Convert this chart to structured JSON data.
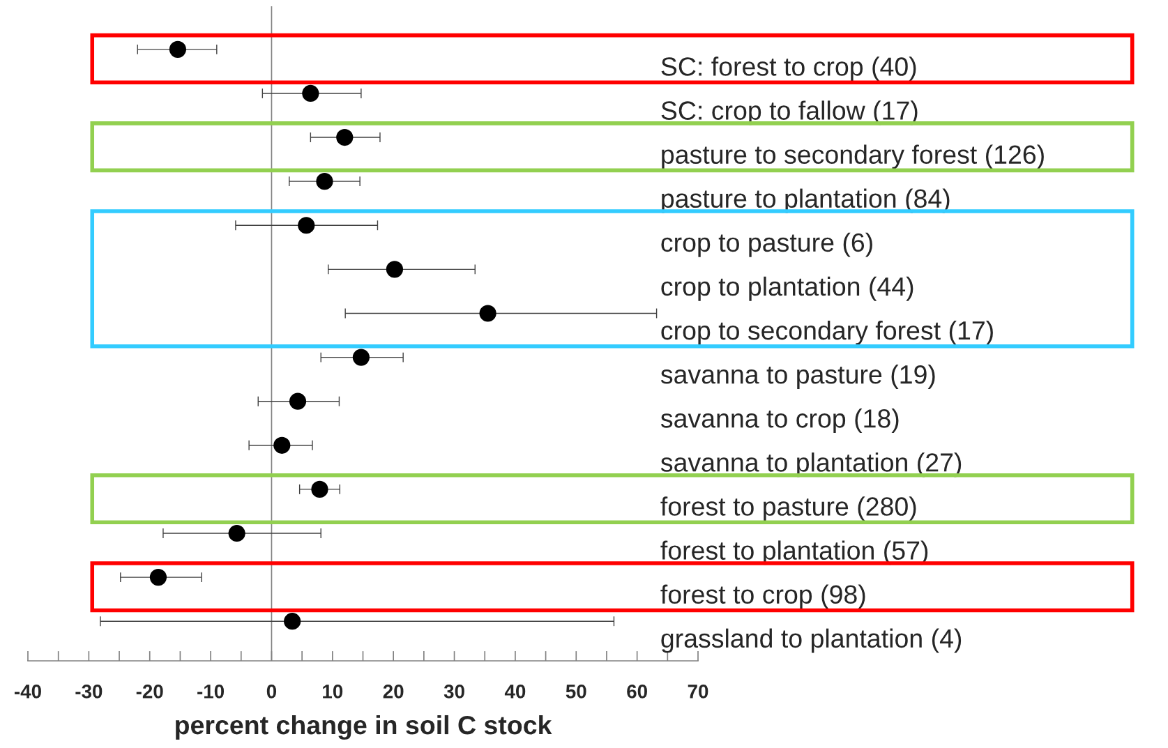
{
  "chart_data": {
    "type": "scatter",
    "orientation": "horizontal",
    "xlabel": "percent change in soil C stock",
    "categories": [
      "SC: forest to crop (40)",
      "SC: crop to fallow (17)",
      "pasture to secondary forest (126)",
      "pasture to plantation (84)",
      "crop to pasture (6)",
      "crop to plantation (44)",
      "crop to secondary forest (17)",
      "savanna to pasture (19)",
      "savanna to crop (18)",
      "savanna to plantation (27)",
      "forest to pasture (280)",
      "forest to plantation (57)",
      "forest to crop (98)",
      "grassland to plantation (4)"
    ],
    "series": [
      {
        "color": "#000000",
        "values": [
          -15.4,
          6.4,
          12.0,
          8.7,
          5.7,
          20.2,
          35.5,
          14.7,
          4.3,
          1.7,
          7.9,
          -5.7,
          -18.6,
          3.4
        ],
        "errors": [
          [
            -22.0,
            -9.0
          ],
          [
            -1.5,
            14.7
          ],
          [
            6.4,
            17.8
          ],
          [
            2.9,
            14.5
          ],
          [
            -5.9,
            17.4
          ],
          [
            9.3,
            33.4
          ],
          [
            12.1,
            63.2
          ],
          [
            8.1,
            21.6
          ],
          [
            -2.2,
            11.1
          ],
          [
            -3.7,
            6.7
          ],
          [
            4.6,
            11.2
          ],
          [
            -17.8,
            8.1
          ],
          [
            -24.8,
            -11.5
          ],
          [
            -28.1,
            56.2
          ]
        ]
      }
    ],
    "xlim": [
      -40,
      70
    ],
    "xticks": [
      -40,
      {
        "value": -35,
        "label": null
      },
      -30,
      {
        "value": -25,
        "label": null
      },
      -20,
      {
        "value": -15,
        "label": null
      },
      -10,
      {
        "value": -5,
        "label": null
      },
      0,
      {
        "value": 5,
        "label": null
      },
      10,
      {
        "value": 15,
        "label": null
      },
      20,
      {
        "value": 25,
        "label": null
      },
      30,
      {
        "value": 35,
        "label": null
      },
      40,
      {
        "value": 45,
        "label": null
      },
      50,
      {
        "value": 55,
        "label": null
      },
      60,
      {
        "value": 65,
        "label": null
      },
      70
    ],
    "ref_lines": [
      {
        "axis": "x",
        "value": 0,
        "color": "#808080"
      }
    ],
    "marker": "circle",
    "grid": false,
    "legend": false
  }
}
